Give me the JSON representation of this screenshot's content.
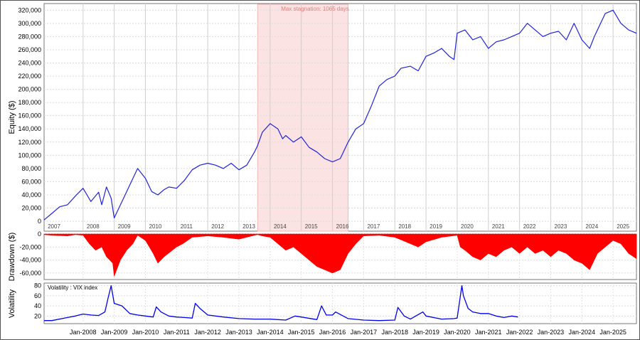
{
  "chart_data": [
    {
      "type": "line",
      "ylabel": "Equity ($)",
      "ylim": [
        -15000,
        330000
      ],
      "yticks": [
        "0",
        "20,000",
        "40,000",
        "60,000",
        "80,000",
        "100,000",
        "120,000",
        "140,000",
        "160,000",
        "180,000",
        "200,000",
        "220,000",
        "240,000",
        "260,000",
        "280,000",
        "300,000",
        "320,000"
      ],
      "year_labels": [
        "2007",
        "2008",
        "2009",
        "2010",
        "2011",
        "2012",
        "2013",
        "2014",
        "2015",
        "2016",
        "2017",
        "2018",
        "2019",
        "2020",
        "2021",
        "2022",
        "2023",
        "2024",
        "2025"
      ],
      "annotation": "Max stagnation: 1065 days",
      "stagnation_period": [
        2013.6,
        2016.5
      ],
      "color": "#2222dd",
      "series": [
        {
          "x": [
            2006.75,
            2007.0,
            2007.25,
            2007.5,
            2007.75,
            2008.0,
            2008.25,
            2008.5,
            2008.6,
            2008.75,
            2008.9,
            2009.0,
            2009.25,
            2009.4,
            2009.6,
            2009.75,
            2010.0,
            2010.2,
            2010.4,
            2010.6,
            2010.75,
            2011.0,
            2011.25,
            2011.5,
            2011.75,
            2012.0,
            2012.25,
            2012.5,
            2012.75,
            2013.0,
            2013.25,
            2013.5,
            2013.6,
            2013.75,
            2014.0,
            2014.25,
            2014.4,
            2014.5,
            2014.75,
            2015.0,
            2015.25,
            2015.5,
            2015.75,
            2016.0,
            2016.25,
            2016.5,
            2016.75,
            2017.0,
            2017.25,
            2017.5,
            2017.75,
            2018.0,
            2018.2,
            2018.5,
            2018.75,
            2019.0,
            2019.25,
            2019.5,
            2019.75,
            2019.9,
            2020.0,
            2020.25,
            2020.5,
            2020.75,
            2021.0,
            2021.25,
            2021.5,
            2021.75,
            2022.0,
            2022.25,
            2022.5,
            2022.75,
            2023.0,
            2023.25,
            2023.5,
            2023.75,
            2024.0,
            2024.25,
            2024.4,
            2024.6,
            2024.75,
            2025.0,
            2025.25,
            2025.5,
            2025.75
          ],
          "values": [
            2000,
            12000,
            22000,
            25000,
            38000,
            50000,
            30000,
            44000,
            25000,
            52000,
            35000,
            5000,
            30000,
            45000,
            65000,
            80000,
            65000,
            45000,
            40000,
            48000,
            52000,
            50000,
            62000,
            78000,
            85000,
            88000,
            85000,
            80000,
            88000,
            78000,
            85000,
            105000,
            115000,
            135000,
            148000,
            140000,
            125000,
            130000,
            120000,
            128000,
            112000,
            105000,
            95000,
            90000,
            95000,
            120000,
            140000,
            148000,
            175000,
            205000,
            215000,
            220000,
            232000,
            235000,
            228000,
            250000,
            255000,
            262000,
            250000,
            245000,
            285000,
            290000,
            275000,
            280000,
            262000,
            272000,
            275000,
            280000,
            285000,
            300000,
            290000,
            280000,
            285000,
            288000,
            275000,
            300000,
            275000,
            262000,
            280000,
            300000,
            315000,
            320000,
            300000,
            290000,
            285000
          ]
        }
      ]
    },
    {
      "type": "area",
      "ylabel": "Drawdown ($)",
      "ylim": [
        -70000,
        0
      ],
      "yticks": [
        "0",
        "-20,000",
        "-40,000",
        "-60,000"
      ],
      "color": "#ff0000",
      "series": [
        {
          "x": [
            2006.75,
            2007.0,
            2007.5,
            2007.75,
            2008.0,
            2008.2,
            2008.4,
            2008.6,
            2008.75,
            2008.95,
            2009.0,
            2009.2,
            2009.4,
            2009.6,
            2009.75,
            2010.0,
            2010.25,
            2010.4,
            2010.6,
            2011.0,
            2011.2,
            2011.5,
            2012.0,
            2012.5,
            2013.0,
            2013.5,
            2013.6,
            2013.75,
            2014.0,
            2014.25,
            2014.5,
            2014.75,
            2015.0,
            2015.25,
            2015.5,
            2015.75,
            2016.0,
            2016.25,
            2016.5,
            2016.75,
            2017.0,
            2017.5,
            2018.0,
            2018.25,
            2018.5,
            2018.75,
            2019.0,
            2019.5,
            2020.0,
            2020.1,
            2020.25,
            2020.5,
            2020.75,
            2021.0,
            2021.25,
            2021.5,
            2021.75,
            2022.0,
            2022.25,
            2022.5,
            2022.75,
            2023.0,
            2023.25,
            2023.5,
            2023.75,
            2024.0,
            2024.25,
            2024.5,
            2024.75,
            2025.0,
            2025.25,
            2025.5,
            2025.75
          ],
          "values": [
            -1000,
            -2000,
            -3000,
            -1000,
            -2000,
            -15000,
            -25000,
            -20000,
            -35000,
            -45000,
            -65000,
            -40000,
            -25000,
            -15000,
            -2000,
            -10000,
            -30000,
            -45000,
            -35000,
            -20000,
            -15000,
            -5000,
            -3000,
            -5000,
            -8000,
            -2000,
            -1000,
            -3000,
            -5000,
            -15000,
            -25000,
            -20000,
            -30000,
            -40000,
            -50000,
            -55000,
            -60000,
            -55000,
            -30000,
            -15000,
            -3000,
            -2000,
            -5000,
            -10000,
            -15000,
            -20000,
            -12000,
            -5000,
            -2000,
            -20000,
            -25000,
            -35000,
            -40000,
            -30000,
            -35000,
            -25000,
            -20000,
            -30000,
            -20000,
            -30000,
            -25000,
            -35000,
            -25000,
            -30000,
            -40000,
            -45000,
            -55000,
            -30000,
            -20000,
            -10000,
            -15000,
            -30000,
            -38000
          ]
        }
      ]
    },
    {
      "type": "line",
      "ylabel": "Volatility",
      "legend": "Volatility : VIX index",
      "ylim": [
        5,
        85
      ],
      "yticks": [
        "20",
        "40",
        "60",
        "80"
      ],
      "xticks": [
        "Jan-2008",
        "Jan-2009",
        "Jan-2010",
        "Jan-2011",
        "Jan-2012",
        "Jan-2013",
        "Jan-2014",
        "Jan-2015",
        "Jan-2016",
        "Jan-2017",
        "Jan-2018",
        "Jan-2019",
        "Jan-2020",
        "Jan-2021",
        "Jan-2022",
        "Jan-2023",
        "Jan-2024",
        "Jan-2025"
      ],
      "color": "#0000ee",
      "series": [
        {
          "x": [
            2006.75,
            2007.0,
            2007.5,
            2007.75,
            2008.0,
            2008.25,
            2008.5,
            2008.7,
            2008.8,
            2008.9,
            2009.0,
            2009.25,
            2009.5,
            2009.75,
            2010.0,
            2010.25,
            2010.35,
            2010.5,
            2010.75,
            2011.0,
            2011.25,
            2011.5,
            2011.6,
            2011.75,
            2012.0,
            2012.5,
            2013.0,
            2013.5,
            2014.0,
            2014.5,
            2014.8,
            2015.0,
            2015.5,
            2015.65,
            2015.8,
            2016.0,
            2016.1,
            2016.5,
            2017.0,
            2017.5,
            2018.0,
            2018.1,
            2018.3,
            2018.5,
            2018.9,
            2019.0,
            2019.5,
            2019.9,
            2020.0,
            2020.15,
            2020.2,
            2020.35,
            2020.5,
            2020.75,
            2021.0,
            2021.25,
            2021.5,
            2021.75,
            2021.95
          ],
          "values": [
            11,
            11,
            17,
            20,
            24,
            22,
            21,
            28,
            55,
            80,
            45,
            40,
            25,
            22,
            20,
            18,
            38,
            28,
            20,
            18,
            17,
            16,
            45,
            35,
            22,
            18,
            15,
            14,
            14,
            12,
            20,
            18,
            13,
            40,
            22,
            22,
            28,
            15,
            12,
            11,
            12,
            37,
            20,
            14,
            28,
            20,
            14,
            15,
            16,
            80,
            60,
            35,
            28,
            25,
            25,
            20,
            17,
            20,
            18
          ]
        }
      ]
    }
  ]
}
